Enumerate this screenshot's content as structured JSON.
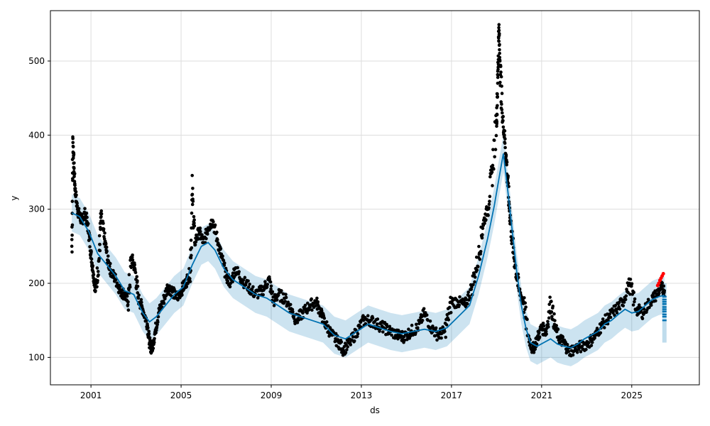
{
  "chart_data": {
    "type": "line",
    "title": "",
    "xlabel": "ds",
    "ylabel": "y",
    "xlim": [
      1999.2,
      2028.0
    ],
    "ylim": [
      63,
      568
    ],
    "x_ticks": [
      2001,
      2005,
      2009,
      2013,
      2017,
      2021,
      2025
    ],
    "x_tick_labels": [
      "2001",
      "2005",
      "2009",
      "2013",
      "2017",
      "2021",
      "2025"
    ],
    "y_ticks": [
      100,
      200,
      300,
      400,
      500
    ],
    "y_tick_labels": [
      "100",
      "200",
      "300",
      "400",
      "500"
    ],
    "grid": true,
    "legend": "none",
    "colors": {
      "observed": "#000000",
      "forecast": "#0072B2",
      "interval": "#0072B2",
      "highlight": "#ff0000",
      "grid": "#dddddd"
    },
    "series": [
      {
        "role": "observed",
        "style": "points",
        "points": [
          [
            2000.15,
            250
          ],
          [
            2000.2,
            390
          ],
          [
            2000.25,
            355
          ],
          [
            2000.3,
            325
          ],
          [
            2000.4,
            300
          ],
          [
            2000.5,
            290
          ],
          [
            2000.6,
            285
          ],
          [
            2000.75,
            295
          ],
          [
            2000.9,
            270
          ],
          [
            2001.0,
            240
          ],
          [
            2001.1,
            215
          ],
          [
            2001.2,
            190
          ],
          [
            2001.35,
            230
          ],
          [
            2001.45,
            290
          ],
          [
            2001.6,
            260
          ],
          [
            2001.75,
            230
          ],
          [
            2001.9,
            215
          ],
          [
            2002.1,
            205
          ],
          [
            2002.3,
            190
          ],
          [
            2002.5,
            185
          ],
          [
            2002.65,
            175
          ],
          [
            2002.8,
            235
          ],
          [
            2002.95,
            220
          ],
          [
            2003.1,
            180
          ],
          [
            2003.3,
            165
          ],
          [
            2003.5,
            145
          ],
          [
            2003.6,
            120
          ],
          [
            2003.7,
            110
          ],
          [
            2003.85,
            135
          ],
          [
            2004.0,
            160
          ],
          [
            2004.2,
            175
          ],
          [
            2004.4,
            195
          ],
          [
            2004.6,
            190
          ],
          [
            2004.8,
            180
          ],
          [
            2005.0,
            190
          ],
          [
            2005.2,
            200
          ],
          [
            2005.4,
            215
          ],
          [
            2005.5,
            320
          ],
          [
            2005.6,
            255
          ],
          [
            2005.8,
            270
          ],
          [
            2006.0,
            255
          ],
          [
            2006.2,
            275
          ],
          [
            2006.4,
            285
          ],
          [
            2006.6,
            260
          ],
          [
            2006.8,
            235
          ],
          [
            2007.0,
            210
          ],
          [
            2007.2,
            200
          ],
          [
            2007.4,
            220
          ],
          [
            2007.7,
            205
          ],
          [
            2008.0,
            195
          ],
          [
            2008.3,
            185
          ],
          [
            2008.6,
            190
          ],
          [
            2008.9,
            205
          ],
          [
            2009.1,
            175
          ],
          [
            2009.3,
            185
          ],
          [
            2009.6,
            180
          ],
          [
            2009.9,
            165
          ],
          [
            2010.1,
            150
          ],
          [
            2010.4,
            160
          ],
          [
            2010.7,
            170
          ],
          [
            2011.0,
            175
          ],
          [
            2011.2,
            160
          ],
          [
            2011.4,
            145
          ],
          [
            2011.7,
            130
          ],
          [
            2012.0,
            120
          ],
          [
            2012.2,
            110
          ],
          [
            2012.5,
            120
          ],
          [
            2012.8,
            135
          ],
          [
            2013.1,
            150
          ],
          [
            2013.4,
            150
          ],
          [
            2013.7,
            145
          ],
          [
            2014.0,
            140
          ],
          [
            2014.3,
            135
          ],
          [
            2014.6,
            130
          ],
          [
            2014.9,
            128
          ],
          [
            2015.2,
            135
          ],
          [
            2015.5,
            140
          ],
          [
            2015.8,
            160
          ],
          [
            2016.1,
            140
          ],
          [
            2016.4,
            130
          ],
          [
            2016.7,
            135
          ],
          [
            2017.0,
            175
          ],
          [
            2017.3,
            175
          ],
          [
            2017.6,
            170
          ],
          [
            2017.9,
            195
          ],
          [
            2018.2,
            235
          ],
          [
            2018.4,
            280
          ],
          [
            2018.6,
            300
          ],
          [
            2018.8,
            350
          ],
          [
            2019.0,
            420
          ],
          [
            2019.05,
            470
          ],
          [
            2019.1,
            545
          ],
          [
            2019.15,
            500
          ],
          [
            2019.25,
            430
          ],
          [
            2019.35,
            400
          ],
          [
            2019.45,
            360
          ],
          [
            2019.55,
            310
          ],
          [
            2019.65,
            270
          ],
          [
            2019.8,
            230
          ],
          [
            2020.0,
            190
          ],
          [
            2020.2,
            175
          ],
          [
            2020.4,
            130
          ],
          [
            2020.6,
            110
          ],
          [
            2020.8,
            125
          ],
          [
            2021.0,
            140
          ],
          [
            2021.2,
            135
          ],
          [
            2021.4,
            175
          ],
          [
            2021.6,
            140
          ],
          [
            2021.8,
            125
          ],
          [
            2022.0,
            120
          ],
          [
            2022.2,
            108
          ],
          [
            2022.5,
            112
          ],
          [
            2022.8,
            115
          ],
          [
            2023.1,
            120
          ],
          [
            2023.4,
            130
          ],
          [
            2023.7,
            145
          ],
          [
            2024.0,
            155
          ],
          [
            2024.3,
            165
          ],
          [
            2024.6,
            175
          ],
          [
            2024.9,
            200
          ],
          [
            2025.2,
            165
          ],
          [
            2025.5,
            160
          ],
          [
            2025.8,
            175
          ],
          [
            2026.1,
            185
          ],
          [
            2026.3,
            195
          ],
          [
            2026.45,
            190
          ]
        ]
      },
      {
        "role": "forecast",
        "style": "line",
        "points": [
          [
            2000.15,
            295
          ],
          [
            2000.5,
            290
          ],
          [
            2000.9,
            270
          ],
          [
            2001.3,
            240
          ],
          [
            2001.7,
            225
          ],
          [
            2002.1,
            210
          ],
          [
            2002.5,
            190
          ],
          [
            2002.9,
            185
          ],
          [
            2003.3,
            160
          ],
          [
            2003.6,
            148
          ],
          [
            2003.9,
            155
          ],
          [
            2004.3,
            170
          ],
          [
            2004.7,
            185
          ],
          [
            2005.1,
            195
          ],
          [
            2005.5,
            225
          ],
          [
            2005.9,
            250
          ],
          [
            2006.2,
            255
          ],
          [
            2006.5,
            245
          ],
          [
            2006.9,
            220
          ],
          [
            2007.3,
            205
          ],
          [
            2007.8,
            195
          ],
          [
            2008.3,
            185
          ],
          [
            2008.8,
            180
          ],
          [
            2009.3,
            170
          ],
          [
            2009.8,
            160
          ],
          [
            2010.3,
            155
          ],
          [
            2010.8,
            150
          ],
          [
            2011.3,
            145
          ],
          [
            2011.8,
            130
          ],
          [
            2012.3,
            125
          ],
          [
            2012.8,
            135
          ],
          [
            2013.3,
            145
          ],
          [
            2013.8,
            140
          ],
          [
            2014.3,
            135
          ],
          [
            2014.8,
            132
          ],
          [
            2015.3,
            135
          ],
          [
            2015.8,
            138
          ],
          [
            2016.3,
            135
          ],
          [
            2016.8,
            140
          ],
          [
            2017.3,
            155
          ],
          [
            2017.8,
            170
          ],
          [
            2018.2,
            210
          ],
          [
            2018.6,
            260
          ],
          [
            2018.9,
            305
          ],
          [
            2019.1,
            340
          ],
          [
            2019.3,
            375
          ],
          [
            2019.5,
            325
          ],
          [
            2019.7,
            270
          ],
          [
            2019.9,
            215
          ],
          [
            2020.1,
            170
          ],
          [
            2020.3,
            140
          ],
          [
            2020.5,
            120
          ],
          [
            2020.8,
            115
          ],
          [
            2021.1,
            120
          ],
          [
            2021.4,
            125
          ],
          [
            2021.7,
            118
          ],
          [
            2022.0,
            115
          ],
          [
            2022.3,
            113
          ],
          [
            2022.6,
            118
          ],
          [
            2022.9,
            125
          ],
          [
            2023.2,
            130
          ],
          [
            2023.5,
            135
          ],
          [
            2023.8,
            145
          ],
          [
            2024.1,
            150
          ],
          [
            2024.4,
            158
          ],
          [
            2024.7,
            165
          ],
          [
            2025.0,
            160
          ],
          [
            2025.3,
            162
          ],
          [
            2025.6,
            170
          ],
          [
            2025.9,
            178
          ],
          [
            2026.2,
            182
          ],
          [
            2026.45,
            184
          ]
        ],
        "band_halfwidth": 25
      },
      {
        "role": "highlight",
        "style": "points",
        "points": [
          [
            2026.15,
            197
          ],
          [
            2026.2,
            200
          ],
          [
            2026.25,
            204
          ],
          [
            2026.3,
            207
          ],
          [
            2026.35,
            210
          ],
          [
            2026.4,
            213
          ]
        ]
      }
    ],
    "forecast_tail": {
      "x": 2026.45,
      "values": [
        182,
        178,
        175,
        172,
        168,
        165,
        162,
        158,
        155,
        150
      ],
      "interval_low": 120,
      "interval_high": 200
    }
  }
}
